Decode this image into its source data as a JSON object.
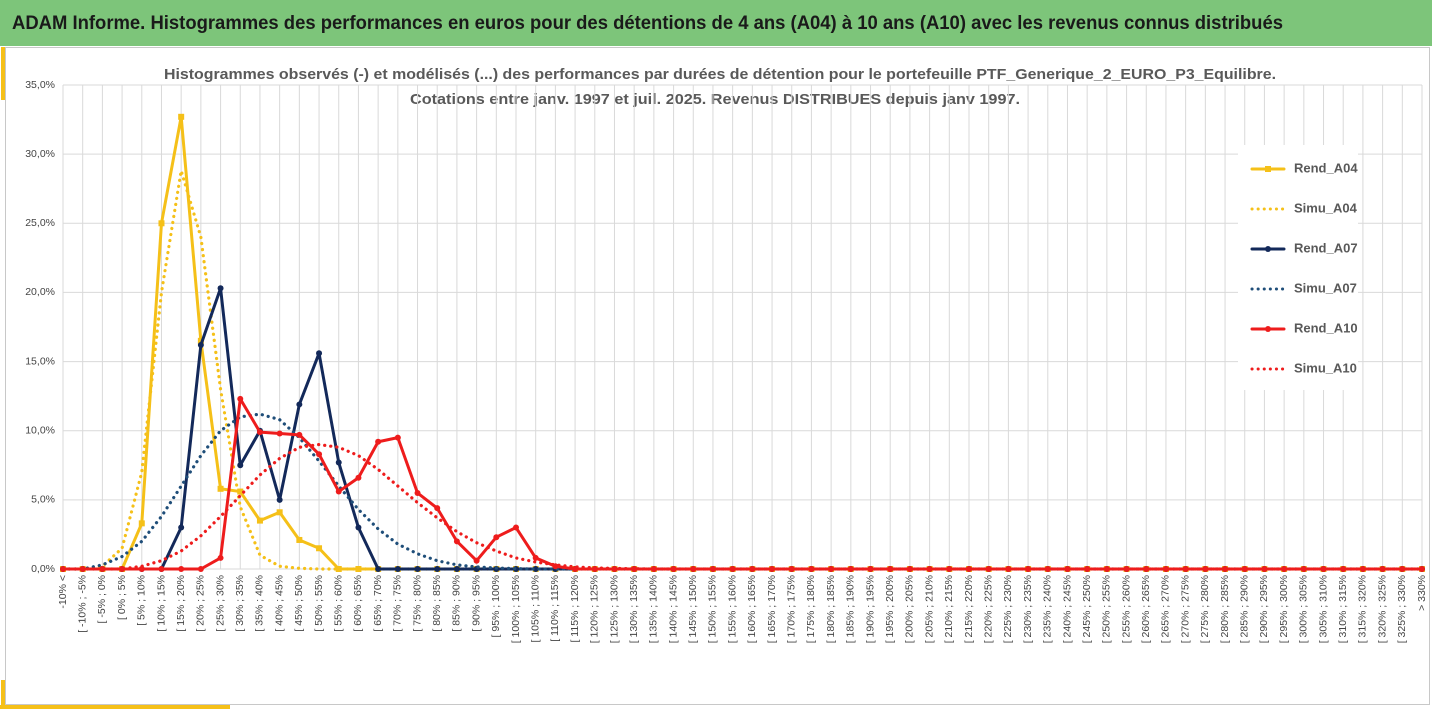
{
  "header": {
    "title": "ADAM Informe. Histogrammes des performances en euros pour des détentions de 4 ans (A04) à 10 ans (A10) avec les revenus connus distribués"
  },
  "chart_data": {
    "type": "line",
    "title": [
      "Histogrammes observés (-) et modélisés (...) des performances par durées de détention pour le portefeuille PTF_Generique_2_EURO_P3_Equilibre.",
      "Cotations entre janv. 1997 et juil. 2025. Revenus DISTRIBUES depuis janv 1997."
    ],
    "categories": [
      "-10% <",
      "[ -10% ; -5%",
      "[ -5% ; 0%",
      "[ 0% ; 5%",
      "[ 5% ; 10%",
      "[ 10% ; 15%",
      "[ 15% ; 20%",
      "[ 20% ; 25%",
      "[ 25% ; 30%",
      "[ 30% ; 35%",
      "[ 35% ; 40%",
      "[ 40% ; 45%",
      "[ 45% ; 50%",
      "[ 50% ; 55%",
      "[ 55% ; 60%",
      "[ 60% ; 65%",
      "[ 65% ; 70%",
      "[ 70% ; 75%",
      "[ 75% ; 80%",
      "[ 80% ; 85%",
      "[ 85% ; 90%",
      "[ 90% ; 95%",
      "[ 95% ; 100%",
      "[ 100% ; 105%",
      "[ 105% ; 110%",
      "[ 110% ; 115%",
      "[ 115% ; 120%",
      "[ 120% ; 125%",
      "[ 125% ; 130%",
      "[ 130% ; 135%",
      "[ 135% ; 140%",
      "[ 140% ; 145%",
      "[ 145% ; 150%",
      "[ 150% ; 155%",
      "[ 155% ; 160%",
      "[ 160% ; 165%",
      "[ 165% ; 170%",
      "[ 170% ; 175%",
      "[ 175% ; 180%",
      "[ 180% ; 185%",
      "[ 185% ; 190%",
      "[ 190% ; 195%",
      "[ 195% ; 200%",
      "[ 200% ; 205%",
      "[ 205% ; 210%",
      "[ 210% ; 215%",
      "[ 215% ; 220%",
      "[ 220% ; 225%",
      "[ 225% ; 230%",
      "[ 230% ; 235%",
      "[ 235% ; 240%",
      "[ 240% ; 245%",
      "[ 245% ; 250%",
      "[ 250% ; 255%",
      "[ 255% ; 260%",
      "[ 260% ; 265%",
      "[ 265% ; 270%",
      "[ 270% ; 275%",
      "[ 275% ; 280%",
      "[ 280% ; 285%",
      "[ 285% ; 290%",
      "[ 290% ; 295%",
      "[ 295% ; 300%",
      "[ 300% ; 305%",
      "[ 305% ; 310%",
      "[ 310% ; 315%",
      "[ 315% ; 320%",
      "[ 320% ; 325%",
      "[ 325% ; 330%",
      "> 330%"
    ],
    "series": [
      {
        "name": "Rend_A04",
        "color": "#f5c018",
        "dash": false,
        "marker": "square",
        "values": [
          0,
          0,
          0,
          0,
          3.3,
          25,
          32.7,
          16.5,
          5.8,
          5.6,
          3.5,
          4.1,
          2.1,
          1.5,
          0,
          0,
          0,
          0,
          0,
          0,
          0,
          0,
          0,
          0,
          0,
          0,
          0,
          0,
          0,
          0,
          0,
          0,
          0,
          0,
          0,
          0,
          0,
          0,
          0,
          0,
          0,
          0,
          0,
          0,
          0,
          0,
          0,
          0,
          0,
          0,
          0,
          0,
          0,
          0,
          0,
          0,
          0,
          0,
          0,
          0,
          0,
          0,
          0,
          0,
          0,
          0,
          0,
          0,
          0,
          0
        ]
      },
      {
        "name": "Simu_A04",
        "color": "#f5c018",
        "dash": true,
        "marker": "none",
        "values": [
          0,
          0,
          0.2,
          1.5,
          7,
          20,
          28.8,
          24,
          13,
          4.5,
          1,
          0.2,
          0.05,
          0,
          0,
          0,
          0,
          0,
          0,
          0,
          0,
          0,
          0,
          0,
          0,
          0,
          0,
          0,
          0,
          0,
          0,
          0,
          0,
          0,
          0,
          0,
          0,
          0,
          0,
          0,
          0,
          0,
          0,
          0,
          0,
          0,
          0,
          0,
          0,
          0,
          0,
          0,
          0,
          0,
          0,
          0,
          0,
          0,
          0,
          0,
          0,
          0,
          0,
          0,
          0,
          0,
          0,
          0,
          0,
          0
        ]
      },
      {
        "name": "Rend_A07",
        "color": "#13295a",
        "dash": false,
        "marker": "circle",
        "values": [
          0,
          0,
          0,
          0,
          0,
          0,
          3,
          16.2,
          20.3,
          7.5,
          10,
          5,
          11.9,
          15.6,
          7.7,
          3,
          0,
          0,
          0,
          0,
          0,
          0,
          0,
          0,
          0,
          0,
          0,
          0,
          0,
          0,
          0,
          0,
          0,
          0,
          0,
          0,
          0,
          0,
          0,
          0,
          0,
          0,
          0,
          0,
          0,
          0,
          0,
          0,
          0,
          0,
          0,
          0,
          0,
          0,
          0,
          0,
          0,
          0,
          0,
          0,
          0,
          0,
          0,
          0,
          0,
          0,
          0,
          0,
          0,
          0
        ]
      },
      {
        "name": "Simu_A07",
        "color": "#1f4e79",
        "dash": true,
        "marker": "none",
        "values": [
          0,
          0,
          0.3,
          0.9,
          2,
          3.8,
          6,
          8.2,
          10,
          11,
          11.2,
          10.8,
          9.5,
          7.8,
          6,
          4.3,
          2.9,
          1.8,
          1.1,
          0.6,
          0.3,
          0.15,
          0.07,
          0.03,
          0,
          0,
          0,
          0,
          0,
          0,
          0,
          0,
          0,
          0,
          0,
          0,
          0,
          0,
          0,
          0,
          0,
          0,
          0,
          0,
          0,
          0,
          0,
          0,
          0,
          0,
          0,
          0,
          0,
          0,
          0,
          0,
          0,
          0,
          0,
          0,
          0,
          0,
          0,
          0,
          0,
          0,
          0,
          0,
          0,
          0
        ]
      },
      {
        "name": "Rend_A10",
        "color": "#ee1c1c",
        "dash": false,
        "marker": "circle",
        "values": [
          0,
          0,
          0,
          0,
          0,
          0,
          0,
          0,
          0.8,
          12.3,
          9.9,
          9.8,
          9.7,
          8.3,
          5.6,
          6.6,
          9.2,
          9.5,
          5.5,
          4.4,
          2,
          0.6,
          2.3,
          3,
          0.8,
          0.2,
          0,
          0,
          0,
          0,
          0,
          0,
          0,
          0,
          0,
          0,
          0,
          0,
          0,
          0,
          0,
          0,
          0,
          0,
          0,
          0,
          0,
          0,
          0,
          0,
          0,
          0,
          0,
          0,
          0,
          0,
          0,
          0,
          0,
          0,
          0,
          0,
          0,
          0,
          0,
          0,
          0,
          0,
          0,
          0
        ]
      },
      {
        "name": "Simu_A10",
        "color": "#ee1c1c",
        "dash": true,
        "marker": "none",
        "values": [
          0,
          0,
          0,
          0,
          0.2,
          0.6,
          1.3,
          2.4,
          3.8,
          5.3,
          6.8,
          8,
          8.8,
          9,
          8.8,
          8.2,
          7.2,
          6,
          4.8,
          3.7,
          2.7,
          1.9,
          1.3,
          0.8,
          0.5,
          0.3,
          0.15,
          0.08,
          0.04,
          0.02,
          0,
          0,
          0,
          0,
          0,
          0,
          0,
          0,
          0,
          0,
          0,
          0,
          0,
          0,
          0,
          0,
          0,
          0,
          0,
          0,
          0,
          0,
          0,
          0,
          0,
          0,
          0,
          0,
          0,
          0,
          0,
          0,
          0,
          0,
          0,
          0,
          0,
          0,
          0,
          0
        ]
      }
    ],
    "ylim": [
      0,
      35
    ],
    "yticks": [
      {
        "value": 0,
        "label": "0,0%"
      },
      {
        "value": 5,
        "label": "5,0%"
      },
      {
        "value": 10,
        "label": "10,0%"
      },
      {
        "value": 15,
        "label": "15,0%"
      },
      {
        "value": 20,
        "label": "20,0%"
      },
      {
        "value": 25,
        "label": "25,0%"
      },
      {
        "value": 30,
        "label": "30,0%"
      },
      {
        "value": 35,
        "label": "35,0%"
      }
    ],
    "grid": true,
    "legend": "right"
  }
}
